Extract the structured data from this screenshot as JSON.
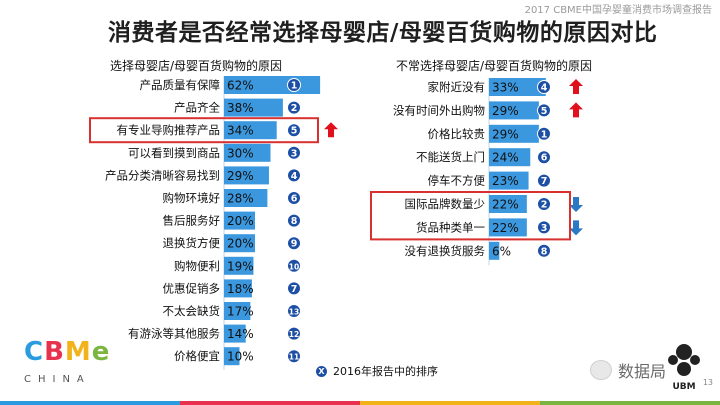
{
  "header_note": "2017 CBME中国孕婴童消费市场调查报告",
  "title": "消费者是否经常选择母婴店/母婴百货购物的原因对比",
  "page_number": "13",
  "legend_note": "2016年报告中的排序",
  "legend_symbol": "X",
  "watermark": "数据局",
  "ubm_label": "UBM",
  "logo": {
    "letters": [
      "C",
      "B",
      "M",
      "e"
    ],
    "subline": "CHINA"
  },
  "colors": {
    "bar": "#3b97de",
    "rank_circle": "#1d4fa5",
    "highlight_box": "#d93030",
    "up_arrow": "#e0101d",
    "down_arrow": "#2a79c4",
    "stripe": [
      "#2b9be0",
      "#e8304f",
      "#f2b21a",
      "#7ab63f"
    ]
  },
  "chart_data": [
    {
      "type": "bar",
      "orientation": "horizontal",
      "title": "选择母婴店/母婴百货购物的原因",
      "categories": [
        "产品质量有保障",
        "产品齐全",
        "有专业导购推荐产品",
        "可以看到摸到商品",
        "产品分类清晰容易找到",
        "购物环境好",
        "售后服务好",
        "退换货方便",
        "购物便利",
        "优惠促销多",
        "不太会缺货",
        "有游泳等其他服务",
        "价格便宜"
      ],
      "values": [
        62,
        38,
        34,
        30,
        29,
        28,
        20,
        20,
        19,
        18,
        17,
        14,
        10
      ],
      "value_labels": [
        "62%",
        "38%",
        "34%",
        "30%",
        "29%",
        "28%",
        "20%",
        "20%",
        "19%",
        "18%",
        "17%",
        "14%",
        "10%"
      ],
      "rank_2016": [
        "1",
        "2",
        "5",
        "3",
        "4",
        "6",
        "8",
        "9",
        "10",
        "7",
        "13",
        "12",
        "11"
      ],
      "highlighted": [
        false,
        false,
        true,
        false,
        false,
        false,
        false,
        false,
        false,
        false,
        false,
        false,
        false
      ],
      "trend": [
        "",
        "",
        "up",
        "",
        "",
        "",
        "",
        "",
        "",
        "",
        "",
        "",
        ""
      ]
    },
    {
      "type": "bar",
      "orientation": "horizontal",
      "title": "不常选择母婴店/母婴百货购物的原因",
      "categories": [
        "家附近没有",
        "没有时间外出购物",
        "价格比较贵",
        "不能送货上门",
        "停车不方便",
        "国际品牌数量少",
        "货品种类单一",
        "没有退换货服务"
      ],
      "values": [
        33,
        29,
        29,
        24,
        23,
        22,
        22,
        6
      ],
      "value_labels": [
        "33%",
        "29%",
        "29%",
        "24%",
        "23%",
        "22%",
        "22%",
        "6%"
      ],
      "rank_2016": [
        "4",
        "5",
        "1",
        "6",
        "7",
        "2",
        "3",
        "8"
      ],
      "highlighted": [
        false,
        false,
        false,
        false,
        false,
        true,
        true,
        false
      ],
      "trend": [
        "up",
        "up",
        "",
        "",
        "",
        "down",
        "down",
        ""
      ]
    }
  ]
}
